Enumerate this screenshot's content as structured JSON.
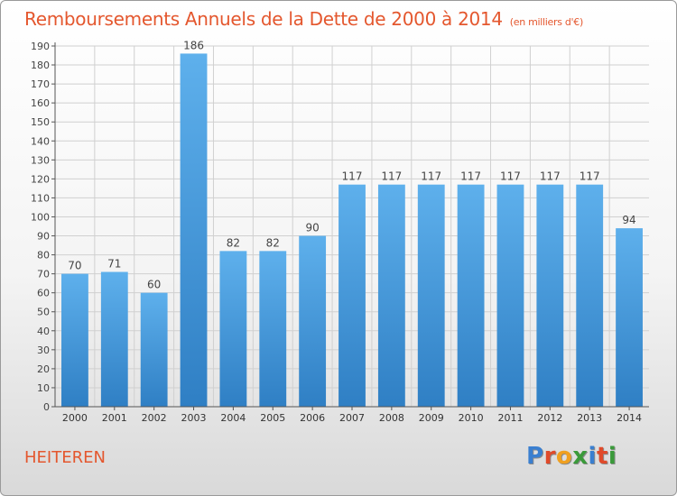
{
  "title": "Remboursements Annuels de la Dette de 2000 à 2014",
  "subtitle": "(en milliers d'€)",
  "commune": "HEITEREN",
  "logo": {
    "text": "Proxiti",
    "letter_colors": [
      "#3a7fd0",
      "#e04a2a",
      "#f0a020",
      "#3a9a3a",
      "#3a7fd0",
      "#e04a2a",
      "#3a9a3a"
    ]
  },
  "colors": {
    "title": "#e4572e",
    "bar_light": "#5eb0ec",
    "bar_dark": "#2f7fc4",
    "grid": "#d0d0d0",
    "axis": "#555555"
  },
  "chart_data": {
    "type": "bar",
    "categories": [
      "2000",
      "2001",
      "2002",
      "2003",
      "2004",
      "2005",
      "2006",
      "2007",
      "2008",
      "2009",
      "2010",
      "2011",
      "2012",
      "2013",
      "2014"
    ],
    "values": [
      70,
      71,
      60,
      186,
      82,
      82,
      90,
      117,
      117,
      117,
      117,
      117,
      117,
      117,
      94
    ],
    "ylim": [
      0,
      190
    ],
    "yticks": [
      0,
      10,
      20,
      30,
      40,
      50,
      60,
      70,
      80,
      90,
      100,
      110,
      120,
      130,
      140,
      150,
      160,
      170,
      180,
      190
    ],
    "grid": true
  }
}
